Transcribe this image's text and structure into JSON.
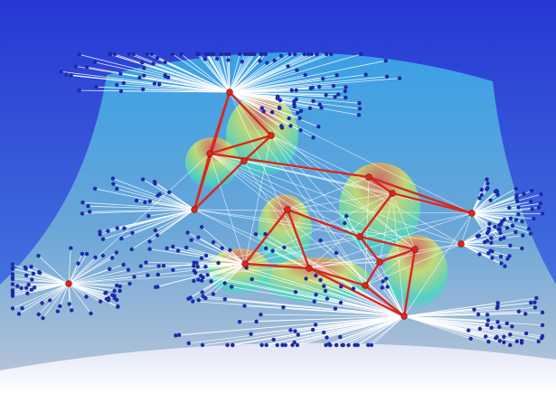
{
  "scene": {
    "description_free": true,
    "colors": {
      "sky_top": "#2a3fd8",
      "sky_bottom": "#5b8fe0",
      "surface_top": "#3a9be0",
      "surface_bottom": "#a9bcd6",
      "floor": "#eef0fb",
      "edge": "#ffffff",
      "hub_edge": "#d8281e",
      "hub_node": "#e0241a",
      "leaf_node": "#1d2aa8",
      "peak_low": "#3fd6c8",
      "peak_mid": "#c6e060",
      "peak_high": "#e05a50"
    }
  }
}
